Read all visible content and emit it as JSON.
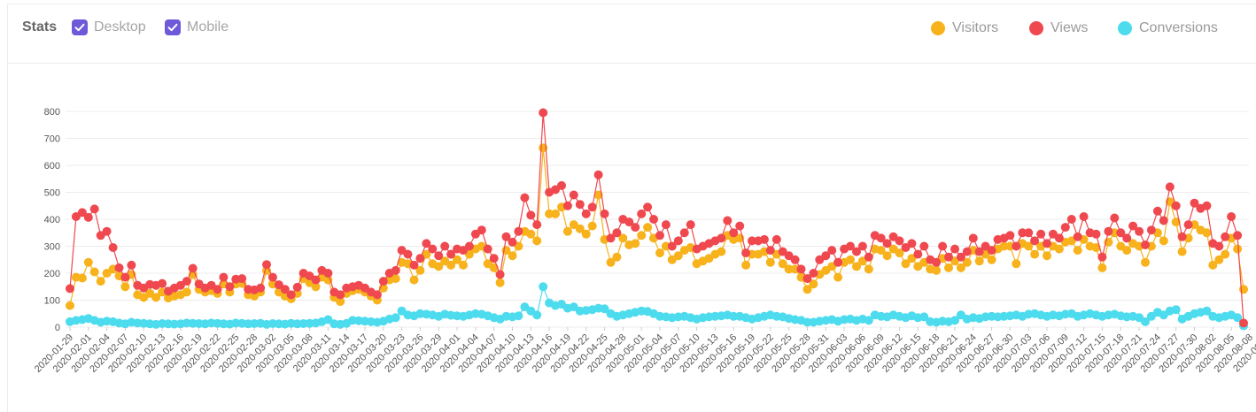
{
  "header": {
    "title": "Stats",
    "filters": [
      {
        "label": "Desktop",
        "checked": true
      },
      {
        "label": "Mobile",
        "checked": true
      }
    ],
    "checkbox_color": "#6e59d9"
  },
  "chart_data": {
    "type": "line",
    "title": "",
    "xlabel": "",
    "ylabel": "",
    "ylim": [
      0,
      800
    ],
    "y_ticks": [
      0,
      100,
      200,
      300,
      400,
      500,
      600,
      700,
      800
    ],
    "grid": "horizontal",
    "legend": "top-right",
    "x_start": "2020-01-29",
    "x_tick_labels": [
      "2020-01-29",
      "2020-02-01",
      "2020-02-04",
      "2020-02-07",
      "2020-02-10",
      "2020-02-13",
      "2020-02-16",
      "2020-02-19",
      "2020-02-22",
      "2020-02-25",
      "2020-02-28",
      "2020-03-02",
      "2020-03-05",
      "2020-03-08",
      "2020-03-11",
      "2020-03-14",
      "2020-03-17",
      "2020-03-20",
      "2020-03-23",
      "2020-03-26",
      "2020-03-29",
      "2020-04-01",
      "2020-04-04",
      "2020-04-07",
      "2020-04-10",
      "2020-04-13",
      "2020-04-16",
      "2020-04-19",
      "2020-04-22",
      "2020-04-25",
      "2020-04-28",
      "2020-05-01",
      "2020-05-04",
      "2020-05-07",
      "2020-05-10",
      "2020-05-13",
      "2020-05-16",
      "2020-05-19",
      "2020-05-22",
      "2020-05-25",
      "2020-05-28",
      "2020-05-31",
      "2020-06-03",
      "2020-06-06",
      "2020-06-09",
      "2020-06-12",
      "2020-06-15",
      "2020-06-18",
      "2020-06-21",
      "2020-06-24",
      "2020-06-27",
      "2020-06-30",
      "2020-07-03",
      "2020-07-06",
      "2020-07-09",
      "2020-07-12",
      "2020-07-15",
      "2020-07-18",
      "2020-07-21",
      "2020-07-24",
      "2020-07-27",
      "2020-07-30",
      "2020-08-02",
      "2020-08-05",
      "2020-08-08",
      "2020-08-11"
    ],
    "series": [
      {
        "name": "Views",
        "color": "#f0484f",
        "values": [
          143,
          410,
          425,
          407,
          438,
          340,
          355,
          295,
          220,
          185,
          230,
          155,
          145,
          158,
          155,
          162,
          133,
          145,
          155,
          170,
          218,
          160,
          145,
          155,
          140,
          185,
          150,
          178,
          180,
          140,
          138,
          145,
          232,
          185,
          157,
          140,
          120,
          148,
          200,
          190,
          175,
          210,
          200,
          130,
          120,
          145,
          150,
          155,
          145,
          130,
          120,
          170,
          200,
          210,
          285,
          270,
          230,
          255,
          310,
          290,
          265,
          300,
          270,
          290,
          285,
          300,
          345,
          360,
          290,
          255,
          195,
          335,
          315,
          355,
          480,
          415,
          380,
          795,
          500,
          510,
          525,
          450,
          490,
          455,
          420,
          445,
          565,
          420,
          330,
          350,
          400,
          390,
          370,
          420,
          445,
          400,
          340,
          380,
          300,
          320,
          350,
          380,
          290,
          300,
          310,
          320,
          330,
          395,
          350,
          375,
          275,
          320,
          320,
          325,
          285,
          325,
          280,
          265,
          250,
          215,
          180,
          200,
          250,
          265,
          285,
          240,
          290,
          300,
          280,
          300,
          260,
          340,
          330,
          310,
          335,
          320,
          295,
          310,
          270,
          300,
          250,
          240,
          300,
          260,
          290,
          260,
          280,
          330,
          280,
          300,
          285,
          325,
          330,
          340,
          300,
          350,
          350,
          320,
          345,
          310,
          345,
          330,
          370,
          400,
          335,
          410,
          350,
          345,
          260,
          355,
          405,
          350,
          330,
          375,
          355,
          305,
          360,
          430,
          395,
          520,
          450,
          335,
          380,
          460,
          440,
          450,
          310,
          300,
          335,
          410,
          340,
          15
        ]
      },
      {
        "name": "Visitors",
        "color": "#f7b21c",
        "values": [
          80,
          185,
          182,
          240,
          205,
          170,
          200,
          215,
          190,
          150,
          195,
          120,
          110,
          125,
          110,
          130,
          108,
          115,
          120,
          130,
          195,
          140,
          130,
          135,
          125,
          160,
          130,
          160,
          162,
          120,
          115,
          130,
          210,
          160,
          130,
          115,
          105,
          125,
          180,
          165,
          150,
          185,
          175,
          110,
          95,
          125,
          135,
          140,
          130,
          115,
          100,
          145,
          175,
          180,
          240,
          235,
          175,
          210,
          270,
          235,
          225,
          245,
          230,
          250,
          230,
          270,
          290,
          300,
          235,
          220,
          165,
          285,
          265,
          300,
          355,
          345,
          320,
          665,
          420,
          420,
          445,
          355,
          380,
          365,
          345,
          375,
          490,
          325,
          240,
          260,
          330,
          305,
          310,
          340,
          370,
          330,
          275,
          300,
          250,
          265,
          285,
          295,
          235,
          245,
          255,
          270,
          280,
          340,
          325,
          330,
          230,
          270,
          270,
          280,
          240,
          270,
          235,
          215,
          215,
          185,
          140,
          160,
          195,
          210,
          225,
          185,
          240,
          250,
          225,
          245,
          215,
          290,
          285,
          265,
          290,
          275,
          235,
          255,
          225,
          240,
          215,
          210,
          255,
          220,
          245,
          220,
          240,
          285,
          245,
          270,
          250,
          290,
          300,
          300,
          235,
          310,
          300,
          270,
          300,
          265,
          300,
          290,
          315,
          320,
          285,
          325,
          300,
          295,
          220,
          315,
          350,
          300,
          285,
          310,
          300,
          240,
          300,
          350,
          320,
          465,
          390,
          280,
          330,
          380,
          360,
          350,
          230,
          250,
          270,
          330,
          290,
          140
        ]
      },
      {
        "name": "Conversions",
        "color": "#4ddbee",
        "values": [
          20,
          25,
          28,
          32,
          25,
          18,
          22,
          20,
          15,
          12,
          18,
          15,
          14,
          12,
          10,
          13,
          12,
          11,
          12,
          15,
          14,
          13,
          12,
          15,
          14,
          12,
          11,
          15,
          14,
          12,
          13,
          14,
          10,
          13,
          12,
          11,
          14,
          12,
          13,
          14,
          15,
          20,
          28,
          12,
          10,
          14,
          25,
          24,
          22,
          20,
          18,
          22,
          30,
          35,
          60,
          45,
          42,
          50,
          48,
          45,
          40,
          48,
          44,
          42,
          40,
          45,
          50,
          48,
          42,
          35,
          30,
          40,
          38,
          42,
          75,
          60,
          45,
          150,
          90,
          80,
          85,
          70,
          75,
          60,
          62,
          65,
          70,
          68,
          50,
          40,
          45,
          50,
          55,
          60,
          58,
          50,
          40,
          38,
          35,
          38,
          40,
          35,
          30,
          35,
          38,
          40,
          42,
          45,
          40,
          40,
          35,
          30,
          35,
          40,
          45,
          40,
          38,
          32,
          28,
          25,
          18,
          18,
          22,
          25,
          28,
          22,
          28,
          30,
          25,
          30,
          25,
          45,
          40,
          38,
          45,
          40,
          35,
          42,
          35,
          38,
          20,
          18,
          22,
          20,
          25,
          45,
          30,
          35,
          32,
          38,
          40,
          38,
          40,
          42,
          45,
          40,
          48,
          50,
          45,
          40,
          45,
          42,
          48,
          50,
          40,
          45,
          50,
          45,
          40,
          45,
          48,
          42,
          38,
          40,
          35,
          20,
          40,
          55,
          45,
          60,
          65,
          30,
          40,
          50,
          55,
          60,
          40,
          35,
          40,
          45,
          35,
          5
        ]
      }
    ],
    "legend_order": [
      "Visitors",
      "Views",
      "Conversions"
    ]
  }
}
